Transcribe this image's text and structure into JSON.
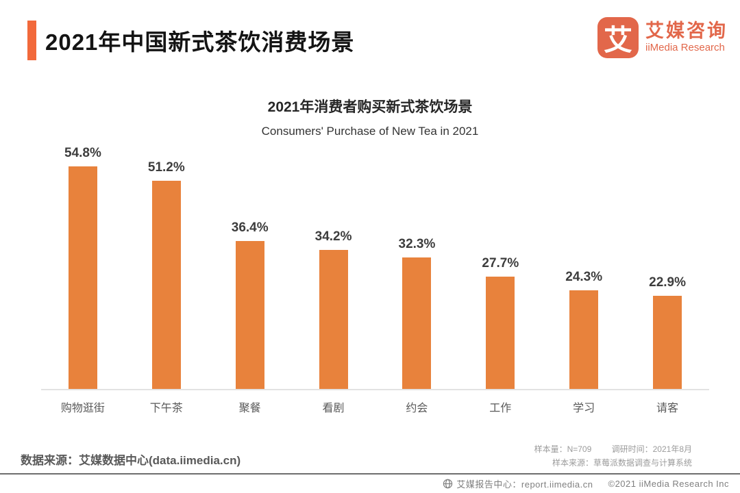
{
  "header": {
    "title": "2021年中国新式茶饮消费场景",
    "accent_color": "#F2693B"
  },
  "logo": {
    "glyph": "艾",
    "company_cn": "艾媒咨询",
    "company_en": "iiMedia Research",
    "brand_color": "#E2674A"
  },
  "chart_data": {
    "type": "bar",
    "title": "2021年消费者购买新式茶饮场景",
    "subtitle": "Consumers' Purchase of New Tea in 2021",
    "categories": [
      "购物逛街",
      "下午茶",
      "聚餐",
      "看剧",
      "约会",
      "工作",
      "学习",
      "请客"
    ],
    "values": [
      54.8,
      51.2,
      36.4,
      34.2,
      32.3,
      27.7,
      24.3,
      22.9
    ],
    "value_labels": [
      "54.8%",
      "51.2%",
      "36.4%",
      "34.2%",
      "32.3%",
      "27.7%",
      "24.3%",
      "22.9%"
    ],
    "unit": "%",
    "bar_color": "#E8823C",
    "ylim": [
      0,
      60
    ],
    "grid": false,
    "legend": "none"
  },
  "source_note": "数据来源：艾媒数据中心(data.iimedia.cn)",
  "survey_info": {
    "sample_size": "样本量：N=709",
    "survey_time": "调研时间：2021年8月",
    "sample_source": "样本来源：草莓派数据调查与计算系统"
  },
  "footer": {
    "report_center": "艾媒报告中心：report.iimedia.cn",
    "copyright": "©2021  iiMedia Research  Inc"
  }
}
